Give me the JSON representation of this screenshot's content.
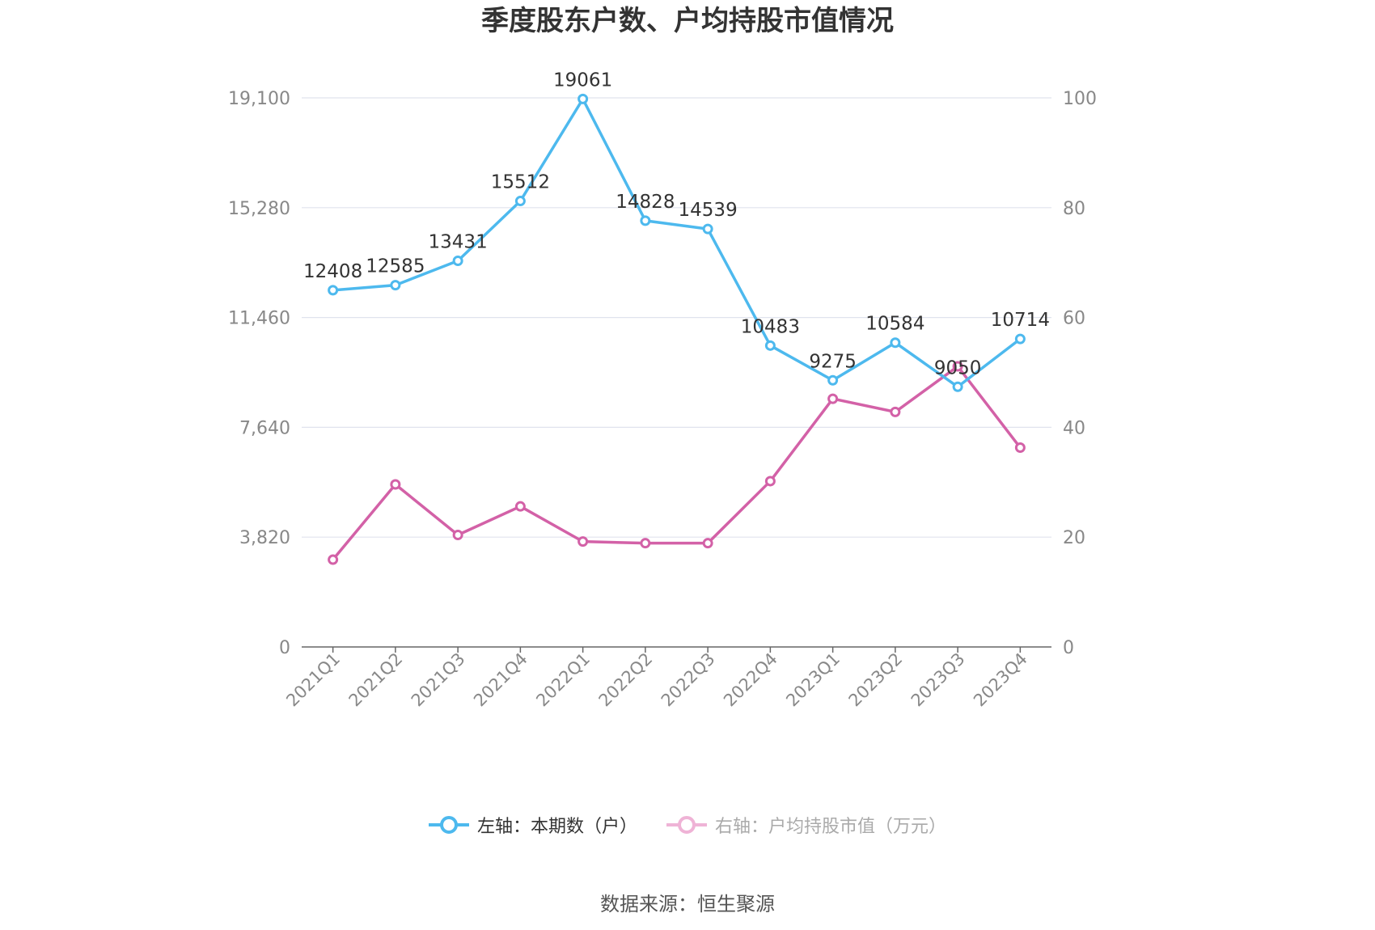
{
  "title": "季度股东户数、户均持股市值情况",
  "source": "数据来源：恒生聚源",
  "colors": {
    "left_series": "#4DB9EE",
    "right_series": "#D361A7",
    "grid": "#E0E3EE",
    "axis": "#666666",
    "tick_text": "#888888"
  },
  "chart_data": {
    "type": "line",
    "x": [
      "2021Q1",
      "2021Q2",
      "2021Q3",
      "2021Q4",
      "2022Q1",
      "2022Q2",
      "2022Q3",
      "2022Q4",
      "2023Q1",
      "2023Q2",
      "2023Q3",
      "2023Q4"
    ],
    "left_axis": {
      "ylim": [
        0,
        19100
      ],
      "ticks": [
        "0",
        "3,820",
        "7,640",
        "11,460",
        "15,280",
        "19,100"
      ]
    },
    "right_axis": {
      "ylim": [
        0,
        100
      ],
      "ticks": [
        "0",
        "20",
        "40",
        "60",
        "80",
        "100"
      ]
    },
    "grid": true,
    "legend_position": "bottom",
    "series": [
      {
        "name": "左轴：本期数（户）",
        "axis": "left",
        "values": [
          12408,
          12585,
          13431,
          15512,
          19061,
          14828,
          14539,
          10483,
          9275,
          10584,
          9050,
          10714
        ],
        "data_labels": true
      },
      {
        "name": "右轴：户均持股市值（万元）",
        "axis": "right",
        "values": [
          15.9,
          29.6,
          20.4,
          25.6,
          19.2,
          18.9,
          18.9,
          30.2,
          45.2,
          42.8,
          51.1,
          36.3
        ],
        "data_labels": false
      }
    ]
  }
}
